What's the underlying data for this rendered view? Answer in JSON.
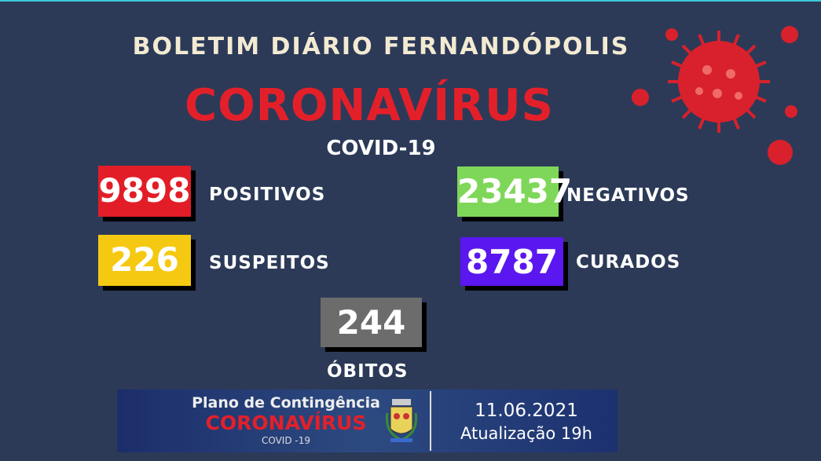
{
  "header": {
    "title": "BOLETIM DIÁRIO FERNANDÓPOLIS",
    "headline": "CORONAVÍRUS",
    "subtitle": "COVID-19"
  },
  "stats": [
    {
      "value": "9898",
      "label": "POSITIVOS",
      "color": "#e21d27"
    },
    {
      "value": "23437",
      "label": "NEGATIVOS",
      "color": "#7fd75a"
    },
    {
      "value": "226",
      "label": "SUSPEITOS",
      "color": "#f5c912"
    },
    {
      "value": "8787",
      "label": "CURADOS",
      "color": "#5b17ef"
    },
    {
      "value": "244",
      "label": "ÓBITOS",
      "color": "#6c6c6c"
    }
  ],
  "banner": {
    "line1": "Plano de Contingência",
    "line2": "CORONAVÍRUS",
    "line3": "COVID -19",
    "date": "11.06.2021",
    "update": "Atualização 19h"
  },
  "decor": {
    "virus_icon": "coronavirus-icon",
    "crest_icon": "city-crest-icon"
  }
}
